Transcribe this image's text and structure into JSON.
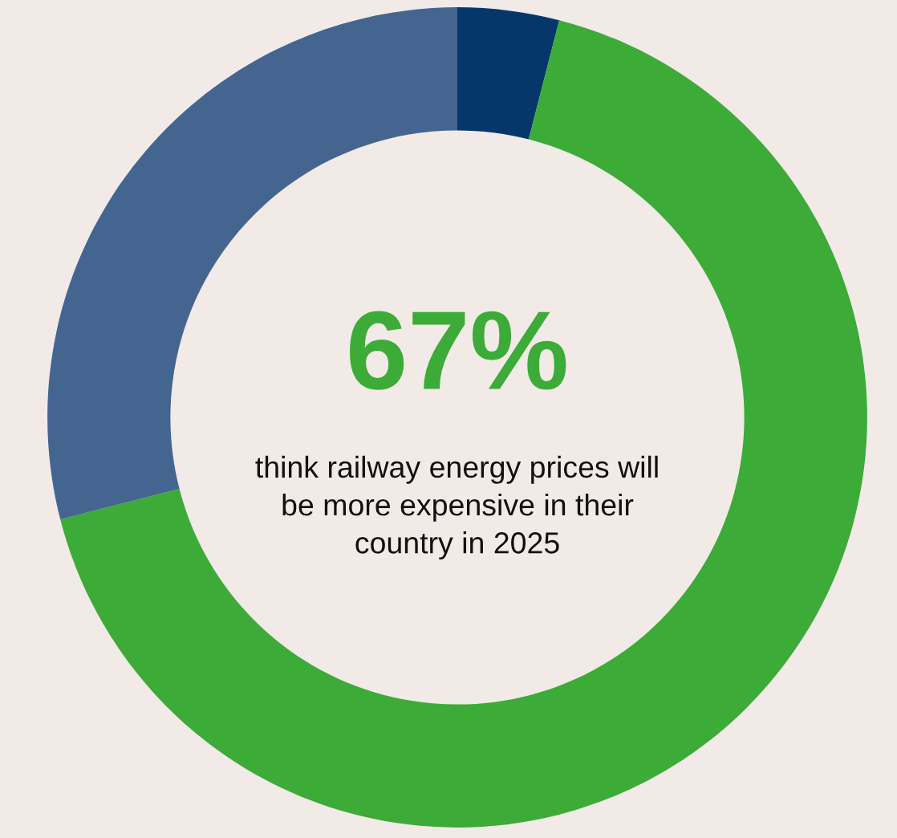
{
  "chart_data": {
    "type": "donut",
    "categories": [
      null,
      null,
      null
    ],
    "values": [
      4,
      67,
      29
    ],
    "colors": [
      "#05376b",
      "#3dab37",
      "#44658f"
    ],
    "annotations": [
      "67%",
      "think railway energy prices will\nbe more expensive in their\ncountry in 2025"
    ]
  }
}
